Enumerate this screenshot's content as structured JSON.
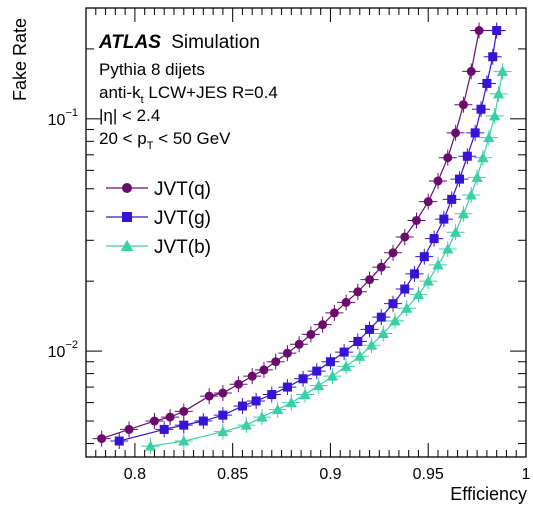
{
  "chart_data": {
    "type": "scatter",
    "title": "",
    "xlabel": "Efficiency",
    "ylabel": "Fake Rate",
    "xlim": [
      0.775,
      1.0
    ],
    "ylim": [
      0.0035,
      0.3
    ],
    "yscale": "log",
    "grid": false,
    "legend_position": "upper-left",
    "x_ticks": [
      0.8,
      0.85,
      0.9,
      0.95,
      1
    ],
    "x_tick_labels": [
      "0.8",
      "0.85",
      "0.9",
      "0.95",
      "1"
    ],
    "y_ticks": [
      0.01,
      0.1
    ],
    "y_tick_labels": [
      {
        "base": "10",
        "exp": "−2"
      },
      {
        "base": "10",
        "exp": "−1"
      }
    ],
    "annotations": {
      "atlas": "ATLAS",
      "simulation": "Simulation",
      "generator": "Pythia 8 dijets",
      "jets_pre": "anti-k",
      "jets_sub": "t",
      "jets_post": " LCW+JES R=0.4",
      "eta": "|η| < 2.4",
      "pt_pre": "20 < p",
      "pt_sub": "T",
      "pt_post": " < 50 GeV"
    },
    "series": [
      {
        "name": "JVT(q)",
        "color": "#6a0b6e",
        "marker": "circle",
        "x": [
          0.783,
          0.797,
          0.81,
          0.818,
          0.825,
          0.838,
          0.845,
          0.853,
          0.86,
          0.866,
          0.872,
          0.878,
          0.884,
          0.89,
          0.896,
          0.902,
          0.908,
          0.914,
          0.92,
          0.926,
          0.932,
          0.938,
          0.944,
          0.95,
          0.955,
          0.96,
          0.964,
          0.968,
          0.972,
          0.976
        ],
        "y": [
          0.0042,
          0.0046,
          0.005,
          0.0052,
          0.0055,
          0.0064,
          0.0066,
          0.0072,
          0.0078,
          0.0083,
          0.009,
          0.0098,
          0.0107,
          0.0118,
          0.013,
          0.0146,
          0.0162,
          0.018,
          0.0203,
          0.023,
          0.0265,
          0.031,
          0.0365,
          0.044,
          0.054,
          0.068,
          0.087,
          0.115,
          0.16,
          0.24
        ]
      },
      {
        "name": "JVT(g)",
        "color": "#3713d6",
        "marker": "square",
        "x": [
          0.792,
          0.815,
          0.825,
          0.835,
          0.845,
          0.855,
          0.862,
          0.87,
          0.878,
          0.886,
          0.893,
          0.9,
          0.907,
          0.914,
          0.92,
          0.926,
          0.932,
          0.938,
          0.943,
          0.948,
          0.953,
          0.958,
          0.962,
          0.966,
          0.97,
          0.974,
          0.977,
          0.98,
          0.983,
          0.985
        ],
        "y": [
          0.0041,
          0.0046,
          0.0048,
          0.005,
          0.0053,
          0.0058,
          0.0061,
          0.0065,
          0.007,
          0.0076,
          0.0082,
          0.009,
          0.0099,
          0.011,
          0.0124,
          0.014,
          0.016,
          0.0185,
          0.0215,
          0.0255,
          0.0305,
          0.037,
          0.045,
          0.055,
          0.069,
          0.087,
          0.11,
          0.142,
          0.185,
          0.24
        ]
      },
      {
        "name": "JVT(b)",
        "color": "#3bcfa8",
        "marker": "triangle",
        "x": [
          0.808,
          0.825,
          0.845,
          0.857,
          0.865,
          0.873,
          0.88,
          0.887,
          0.894,
          0.901,
          0.908,
          0.915,
          0.921,
          0.927,
          0.933,
          0.939,
          0.945,
          0.95,
          0.955,
          0.96,
          0.964,
          0.968,
          0.972,
          0.975,
          0.978,
          0.981,
          0.984,
          0.986,
          0.988
        ],
        "y": [
          0.0039,
          0.0041,
          0.0045,
          0.0048,
          0.0052,
          0.0056,
          0.006,
          0.0065,
          0.0071,
          0.0078,
          0.0086,
          0.0095,
          0.0106,
          0.0119,
          0.0135,
          0.0153,
          0.0175,
          0.02,
          0.0235,
          0.0275,
          0.0325,
          0.039,
          0.047,
          0.056,
          0.068,
          0.083,
          0.103,
          0.128,
          0.16
        ]
      }
    ]
  }
}
